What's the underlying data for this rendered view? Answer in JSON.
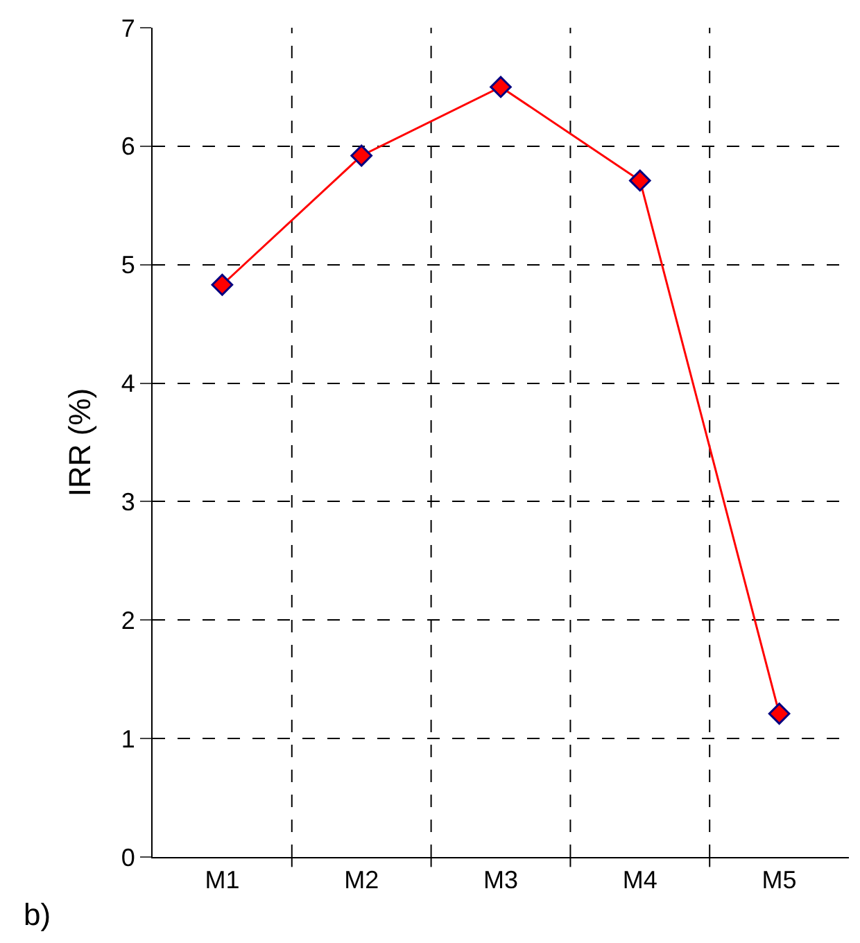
{
  "chart_data": {
    "type": "line",
    "ylabel": "IRR (%)",
    "categories": [
      "M1",
      "M2",
      "M3",
      "M4",
      "M5"
    ],
    "series": [
      {
        "color": "#ff0000",
        "values": [
          4.83,
          5.92,
          6.5,
          5.71,
          1.21
        ]
      }
    ],
    "ylim": [
      0,
      7
    ],
    "yticks": [
      0,
      1,
      2,
      3,
      4,
      5,
      6,
      7
    ],
    "grid": true,
    "marker": "diamond",
    "line_style": "solid",
    "legend": false,
    "annotations": [
      "b)"
    ]
  }
}
